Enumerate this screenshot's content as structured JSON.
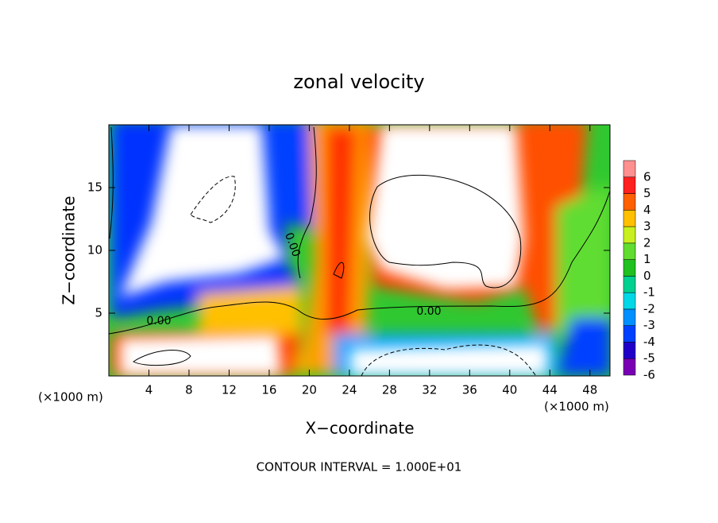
{
  "chart_data": {
    "type": "contour",
    "title": "zonal velocity",
    "xlabel": "X−coordinate",
    "ylabel": "Z−coordinate",
    "x_unit": "(×1000 m)",
    "xlim": [
      0,
      50
    ],
    "ylim": [
      0,
      20
    ],
    "xticks": [
      4,
      8,
      12,
      16,
      20,
      24,
      28,
      32,
      36,
      40,
      44,
      48
    ],
    "yticks": [
      5,
      10,
      15
    ],
    "contour_label": "0.00",
    "footer": "CONTOUR INTERVAL = 1.000E+01",
    "colorbar": {
      "ticks": [
        -6,
        -5,
        -4,
        -3,
        -2,
        -1,
        0,
        1,
        2,
        3,
        4,
        5,
        6
      ],
      "colors": [
        "#7a00b4",
        "#2000c8",
        "#0040ff",
        "#0090ff",
        "#00d8e8",
        "#00d090",
        "#20c020",
        "#60dd30",
        "#c8f020",
        "#ffc000",
        "#ff6000",
        "#ff2020",
        "#ff9090"
      ]
    }
  }
}
